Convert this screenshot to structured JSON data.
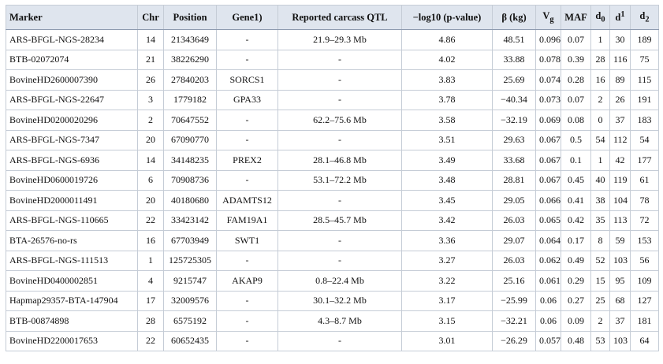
{
  "table": {
    "header": [
      "Marker",
      "Chr",
      "Position",
      "Gene1)",
      "Reported carcass QTL",
      "−log10 (p-value)",
      "β (kg)",
      {
        "text": "V",
        "sub": "g"
      },
      "MAF",
      {
        "text": "d",
        "sub": "0"
      },
      {
        "text": "d",
        "sup": "1"
      },
      {
        "text": "d",
        "sub": "2"
      }
    ],
    "rows": [
      [
        "ARS-BFGL-NGS-28234",
        "14",
        "21343649",
        "-",
        "21.9–29.3 Mb",
        "4.86",
        "48.51",
        "0.096",
        "0.07",
        "1",
        "30",
        "189"
      ],
      [
        "BTB-02072074",
        "21",
        "38226290",
        "-",
        "-",
        "4.02",
        "33.88",
        "0.078",
        "0.39",
        "28",
        "116",
        "75"
      ],
      [
        "BovineHD2600007390",
        "26",
        "27840203",
        "SORCS1",
        "-",
        "3.83",
        "25.69",
        "0.074",
        "0.28",
        "16",
        "89",
        "115"
      ],
      [
        "ARS-BFGL-NGS-22647",
        "3",
        "1779182",
        "GPA33",
        "-",
        "3.78",
        "−40.34",
        "0.073",
        "0.07",
        "2",
        "26",
        "191"
      ],
      [
        "BovineHD0200020296",
        "2",
        "70647552",
        "-",
        "62.2–75.6 Mb",
        "3.58",
        "−32.19",
        "0.069",
        "0.08",
        "0",
        "37",
        "183"
      ],
      [
        "ARS-BFGL-NGS-7347",
        "20",
        "67090770",
        "-",
        "-",
        "3.51",
        "29.63",
        "0.067",
        "0.5",
        "54",
        "112",
        "54"
      ],
      [
        "ARS-BFGL-NGS-6936",
        "14",
        "34148235",
        "PREX2",
        "28.1–46.8 Mb",
        "3.49",
        "33.68",
        "0.067",
        "0.1",
        "1",
        "42",
        "177"
      ],
      [
        "BovineHD0600019726",
        "6",
        "70908736",
        "-",
        "53.1–72.2 Mb",
        "3.48",
        "28.81",
        "0.067",
        "0.45",
        "40",
        "119",
        "61"
      ],
      [
        "BovineHD2000011491",
        "20",
        "40180680",
        "ADAMTS12",
        "-",
        "3.45",
        "29.05",
        "0.066",
        "0.41",
        "38",
        "104",
        "78"
      ],
      [
        "ARS-BFGL-NGS-110665",
        "22",
        "33423142",
        "FAM19A1",
        "28.5–45.7 Mb",
        "3.42",
        "26.03",
        "0.065",
        "0.42",
        "35",
        "113",
        "72"
      ],
      [
        "BTA-26576-no-rs",
        "16",
        "67703949",
        "SWT1",
        "-",
        "3.36",
        "29.07",
        "0.064",
        "0.17",
        "8",
        "59",
        "153"
      ],
      [
        "ARS-BFGL-NGS-111513",
        "1",
        "125725305",
        "-",
        "-",
        "3.27",
        "26.03",
        "0.062",
        "0.49",
        "52",
        "103",
        "56"
      ],
      [
        "BovineHD0400002851",
        "4",
        "9215747",
        "AKAP9",
        "0.8–22.4 Mb",
        "3.22",
        "25.16",
        "0.061",
        "0.29",
        "15",
        "95",
        "109"
      ],
      [
        "Hapmap29357-BTA-147904",
        "17",
        "32009576",
        "-",
        "30.1–32.2 Mb",
        "3.17",
        "−25.99",
        "0.06",
        "0.27",
        "25",
        "68",
        "127"
      ],
      [
        "BTB-00874898",
        "28",
        "6575192",
        "-",
        "4.3–8.7 Mb",
        "3.15",
        "−32.21",
        "0.06",
        "0.09",
        "2",
        "37",
        "181"
      ],
      [
        "BovineHD2200017653",
        "22",
        "60652435",
        "-",
        "-",
        "3.01",
        "−26.29",
        "0.057",
        "0.48",
        "53",
        "103",
        "64"
      ]
    ]
  }
}
